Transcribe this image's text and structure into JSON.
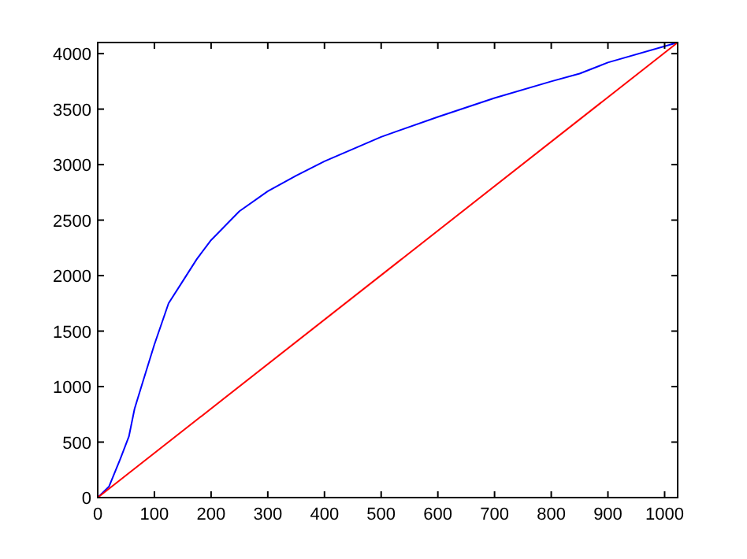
{
  "chart_data": {
    "type": "line",
    "xlim": [
      0,
      1023
    ],
    "ylim": [
      0,
      4100
    ],
    "xticks": [
      0,
      100,
      200,
      300,
      400,
      500,
      600,
      700,
      800,
      900,
      1000
    ],
    "yticks": [
      0,
      500,
      1000,
      1500,
      2000,
      2500,
      3000,
      3500,
      4000
    ],
    "grid": false,
    "marker": "none",
    "line_style": "solid",
    "series": [
      {
        "color": "#0000ff",
        "x": [
          0,
          20,
          40,
          55,
          65,
          80,
          100,
          125,
          150,
          175,
          200,
          250,
          300,
          350,
          400,
          450,
          500,
          600,
          700,
          800,
          850,
          900,
          1023
        ],
        "values": [
          0,
          100,
          350,
          550,
          800,
          1050,
          1380,
          1750,
          1950,
          2150,
          2320,
          2580,
          2760,
          2900,
          3030,
          3140,
          3250,
          3430,
          3600,
          3750,
          3820,
          3920,
          4100
        ]
      },
      {
        "color": "#ff0000",
        "x": [
          0,
          1023
        ],
        "values": [
          0,
          4100
        ]
      }
    ]
  }
}
